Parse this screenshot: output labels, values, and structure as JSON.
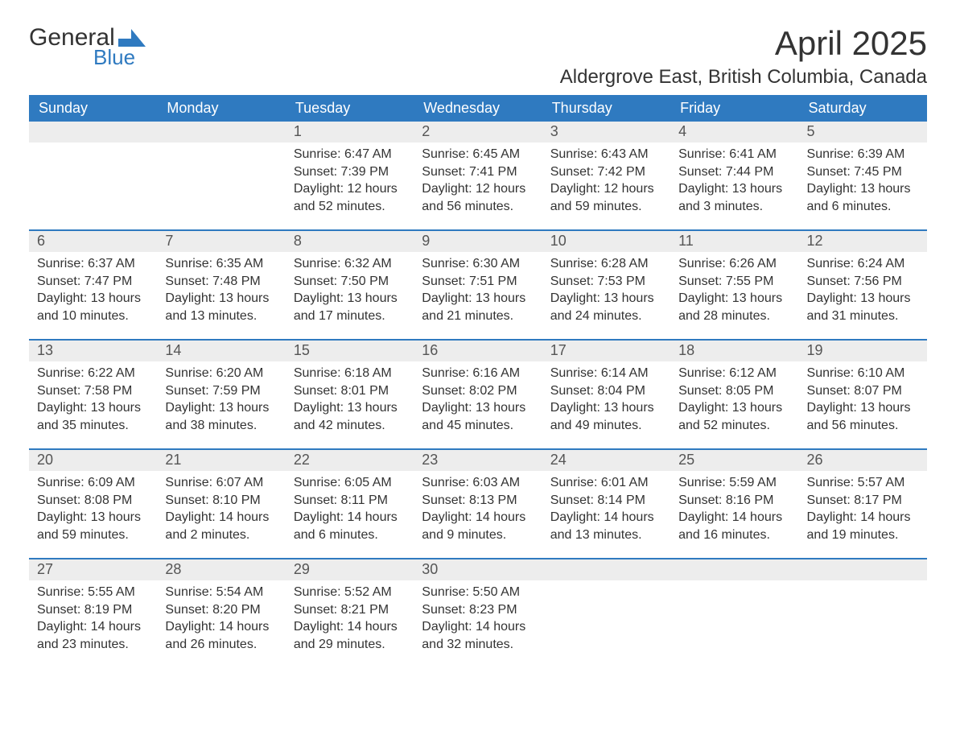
{
  "brand": {
    "word1": "General",
    "word2": "Blue",
    "accent_color": "#2f7ac0"
  },
  "header": {
    "month_title": "April 2025",
    "location": "Aldergrove East, British Columbia, Canada"
  },
  "calendar": {
    "day_names": [
      "Sunday",
      "Monday",
      "Tuesday",
      "Wednesday",
      "Thursday",
      "Friday",
      "Saturday"
    ],
    "header_bg": "#2f7ac0",
    "header_text_color": "#ffffff",
    "daynum_bg": "#ededed",
    "row_separator_color": "#2f7ac0",
    "body_text_color": "#333333",
    "font_family": "Segoe UI, Arial, sans-serif",
    "weeks": [
      [
        null,
        null,
        {
          "n": "1",
          "sunrise": "Sunrise: 6:47 AM",
          "sunset": "Sunset: 7:39 PM",
          "dl1": "Daylight: 12 hours",
          "dl2": "and 52 minutes."
        },
        {
          "n": "2",
          "sunrise": "Sunrise: 6:45 AM",
          "sunset": "Sunset: 7:41 PM",
          "dl1": "Daylight: 12 hours",
          "dl2": "and 56 minutes."
        },
        {
          "n": "3",
          "sunrise": "Sunrise: 6:43 AM",
          "sunset": "Sunset: 7:42 PM",
          "dl1": "Daylight: 12 hours",
          "dl2": "and 59 minutes."
        },
        {
          "n": "4",
          "sunrise": "Sunrise: 6:41 AM",
          "sunset": "Sunset: 7:44 PM",
          "dl1": "Daylight: 13 hours",
          "dl2": "and 3 minutes."
        },
        {
          "n": "5",
          "sunrise": "Sunrise: 6:39 AM",
          "sunset": "Sunset: 7:45 PM",
          "dl1": "Daylight: 13 hours",
          "dl2": "and 6 minutes."
        }
      ],
      [
        {
          "n": "6",
          "sunrise": "Sunrise: 6:37 AM",
          "sunset": "Sunset: 7:47 PM",
          "dl1": "Daylight: 13 hours",
          "dl2": "and 10 minutes."
        },
        {
          "n": "7",
          "sunrise": "Sunrise: 6:35 AM",
          "sunset": "Sunset: 7:48 PM",
          "dl1": "Daylight: 13 hours",
          "dl2": "and 13 minutes."
        },
        {
          "n": "8",
          "sunrise": "Sunrise: 6:32 AM",
          "sunset": "Sunset: 7:50 PM",
          "dl1": "Daylight: 13 hours",
          "dl2": "and 17 minutes."
        },
        {
          "n": "9",
          "sunrise": "Sunrise: 6:30 AM",
          "sunset": "Sunset: 7:51 PM",
          "dl1": "Daylight: 13 hours",
          "dl2": "and 21 minutes."
        },
        {
          "n": "10",
          "sunrise": "Sunrise: 6:28 AM",
          "sunset": "Sunset: 7:53 PM",
          "dl1": "Daylight: 13 hours",
          "dl2": "and 24 minutes."
        },
        {
          "n": "11",
          "sunrise": "Sunrise: 6:26 AM",
          "sunset": "Sunset: 7:55 PM",
          "dl1": "Daylight: 13 hours",
          "dl2": "and 28 minutes."
        },
        {
          "n": "12",
          "sunrise": "Sunrise: 6:24 AM",
          "sunset": "Sunset: 7:56 PM",
          "dl1": "Daylight: 13 hours",
          "dl2": "and 31 minutes."
        }
      ],
      [
        {
          "n": "13",
          "sunrise": "Sunrise: 6:22 AM",
          "sunset": "Sunset: 7:58 PM",
          "dl1": "Daylight: 13 hours",
          "dl2": "and 35 minutes."
        },
        {
          "n": "14",
          "sunrise": "Sunrise: 6:20 AM",
          "sunset": "Sunset: 7:59 PM",
          "dl1": "Daylight: 13 hours",
          "dl2": "and 38 minutes."
        },
        {
          "n": "15",
          "sunrise": "Sunrise: 6:18 AM",
          "sunset": "Sunset: 8:01 PM",
          "dl1": "Daylight: 13 hours",
          "dl2": "and 42 minutes."
        },
        {
          "n": "16",
          "sunrise": "Sunrise: 6:16 AM",
          "sunset": "Sunset: 8:02 PM",
          "dl1": "Daylight: 13 hours",
          "dl2": "and 45 minutes."
        },
        {
          "n": "17",
          "sunrise": "Sunrise: 6:14 AM",
          "sunset": "Sunset: 8:04 PM",
          "dl1": "Daylight: 13 hours",
          "dl2": "and 49 minutes."
        },
        {
          "n": "18",
          "sunrise": "Sunrise: 6:12 AM",
          "sunset": "Sunset: 8:05 PM",
          "dl1": "Daylight: 13 hours",
          "dl2": "and 52 minutes."
        },
        {
          "n": "19",
          "sunrise": "Sunrise: 6:10 AM",
          "sunset": "Sunset: 8:07 PM",
          "dl1": "Daylight: 13 hours",
          "dl2": "and 56 minutes."
        }
      ],
      [
        {
          "n": "20",
          "sunrise": "Sunrise: 6:09 AM",
          "sunset": "Sunset: 8:08 PM",
          "dl1": "Daylight: 13 hours",
          "dl2": "and 59 minutes."
        },
        {
          "n": "21",
          "sunrise": "Sunrise: 6:07 AM",
          "sunset": "Sunset: 8:10 PM",
          "dl1": "Daylight: 14 hours",
          "dl2": "and 2 minutes."
        },
        {
          "n": "22",
          "sunrise": "Sunrise: 6:05 AM",
          "sunset": "Sunset: 8:11 PM",
          "dl1": "Daylight: 14 hours",
          "dl2": "and 6 minutes."
        },
        {
          "n": "23",
          "sunrise": "Sunrise: 6:03 AM",
          "sunset": "Sunset: 8:13 PM",
          "dl1": "Daylight: 14 hours",
          "dl2": "and 9 minutes."
        },
        {
          "n": "24",
          "sunrise": "Sunrise: 6:01 AM",
          "sunset": "Sunset: 8:14 PM",
          "dl1": "Daylight: 14 hours",
          "dl2": "and 13 minutes."
        },
        {
          "n": "25",
          "sunrise": "Sunrise: 5:59 AM",
          "sunset": "Sunset: 8:16 PM",
          "dl1": "Daylight: 14 hours",
          "dl2": "and 16 minutes."
        },
        {
          "n": "26",
          "sunrise": "Sunrise: 5:57 AM",
          "sunset": "Sunset: 8:17 PM",
          "dl1": "Daylight: 14 hours",
          "dl2": "and 19 minutes."
        }
      ],
      [
        {
          "n": "27",
          "sunrise": "Sunrise: 5:55 AM",
          "sunset": "Sunset: 8:19 PM",
          "dl1": "Daylight: 14 hours",
          "dl2": "and 23 minutes."
        },
        {
          "n": "28",
          "sunrise": "Sunrise: 5:54 AM",
          "sunset": "Sunset: 8:20 PM",
          "dl1": "Daylight: 14 hours",
          "dl2": "and 26 minutes."
        },
        {
          "n": "29",
          "sunrise": "Sunrise: 5:52 AM",
          "sunset": "Sunset: 8:21 PM",
          "dl1": "Daylight: 14 hours",
          "dl2": "and 29 minutes."
        },
        {
          "n": "30",
          "sunrise": "Sunrise: 5:50 AM",
          "sunset": "Sunset: 8:23 PM",
          "dl1": "Daylight: 14 hours",
          "dl2": "and 32 minutes."
        },
        null,
        null,
        null
      ]
    ]
  }
}
